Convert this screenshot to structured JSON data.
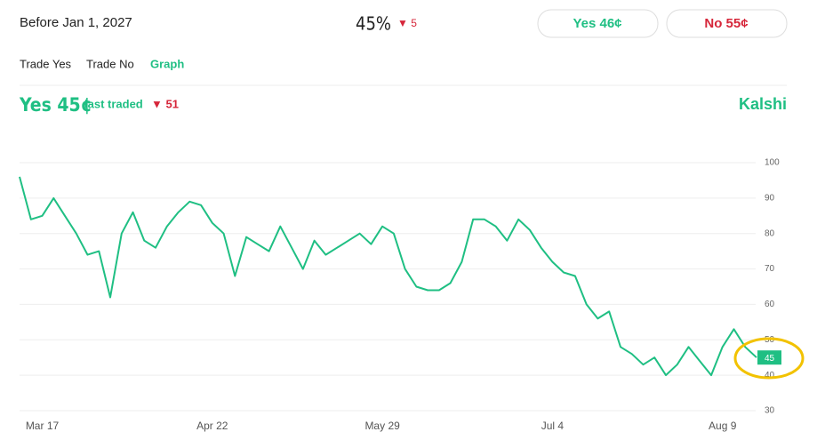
{
  "header": {
    "title": "Before Jan 1, 2027",
    "percent": "45%",
    "change": "▼ 5"
  },
  "buttons": {
    "yes": "Yes 46¢",
    "no": "No 55¢"
  },
  "tabs": [
    "Trade Yes",
    "Trade No",
    "Graph"
  ],
  "summary": {
    "price": "Yes 45¢",
    "note": "last traded",
    "change": "▼ 51"
  },
  "brand": "Kalshi",
  "chart_data": {
    "type": "line",
    "color": "#1fbf83",
    "categories": [
      null,
      null,
      "Mar 17",
      null,
      null,
      null,
      null,
      null,
      null,
      null,
      null,
      null,
      null,
      null,
      null,
      null,
      null,
      "Apr 22",
      null,
      null,
      null,
      null,
      null,
      null,
      null,
      null,
      null,
      null,
      null,
      null,
      null,
      null,
      "May 29",
      null,
      null,
      null,
      null,
      null,
      null,
      null,
      null,
      null,
      null,
      null,
      null,
      null,
      null,
      "Jul 4",
      null,
      null,
      null,
      null,
      null,
      null,
      null,
      null,
      null,
      null,
      null,
      null,
      null,
      null,
      "Aug 9",
      null,
      null,
      null
    ],
    "values": [
      96,
      84,
      85,
      90,
      85,
      80,
      74,
      75,
      62,
      80,
      86,
      78,
      76,
      82,
      86,
      89,
      88,
      83,
      80,
      68,
      79,
      77,
      75,
      82,
      76,
      70,
      78,
      74,
      76,
      78,
      80,
      77,
      82,
      80,
      70,
      65,
      64,
      64,
      66,
      72,
      84,
      84,
      82,
      78,
      84,
      81,
      76,
      72,
      69,
      68,
      60,
      56,
      58,
      48,
      46,
      43,
      45,
      40,
      43,
      48,
      44,
      40,
      48,
      53,
      48,
      45
    ],
    "current_value": 45,
    "ylim": [
      30,
      100
    ],
    "yticks": [
      30,
      40,
      50,
      60,
      70,
      80,
      90,
      100
    ],
    "grid": true
  }
}
